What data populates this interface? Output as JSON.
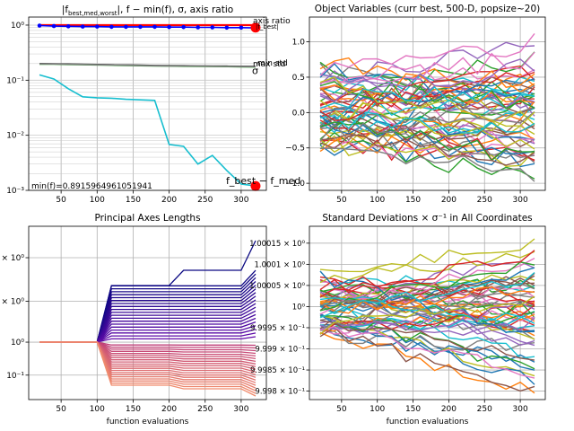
{
  "chart_data": [
    {
      "type": "line",
      "title": "|f_best,med,worst|, f − min(f), σ, axis ratio",
      "title_main": "|f",
      "title_sub": "best,med,worst",
      "title_rest": "|, f − min(f), σ, axis ratio",
      "yscale": "log",
      "xlim": [
        5,
        335
      ],
      "ylim": [
        0.001,
        1.4
      ],
      "xticks": [
        50,
        100,
        150,
        200,
        250,
        300
      ],
      "yticks": [
        {
          "v": 1,
          "label": "10⁰"
        },
        {
          "v": 0.1,
          "label": "10⁻¹"
        },
        {
          "v": 0.01,
          "label": "10⁻²"
        },
        {
          "v": 0.001,
          "label": "10⁻³"
        }
      ],
      "annotation": "min(f)=0.8915964961051941",
      "labels": {
        "axis_ratio": "axis ratio",
        "f_best": "|f_best|",
        "max_std": "max std",
        "min_std": "min std",
        "sigma": "σ",
        "f_best_minus": "f_best − f_med"
      },
      "x": [
        20,
        40,
        60,
        80,
        100,
        120,
        140,
        160,
        180,
        200,
        220,
        240,
        260,
        280,
        300,
        320
      ],
      "series": [
        {
          "name": "axis ratio",
          "color": "#ff0000",
          "values": [
            1.0,
            1.0,
            1.0,
            1.0,
            1.0,
            1.0,
            1.0,
            1.0,
            1.0,
            1.0,
            1.0,
            1.0,
            1.0,
            1.0,
            1.0,
            1.0
          ]
        },
        {
          "name": "|f_best|",
          "color": "#0000ff",
          "marker": "dot",
          "values": [
            0.98,
            0.96,
            0.95,
            0.94,
            0.94,
            0.93,
            0.93,
            0.93,
            0.93,
            0.92,
            0.92,
            0.91,
            0.91,
            0.9,
            0.9,
            0.89
          ]
        },
        {
          "name": "max std",
          "color": "#222222",
          "values": [
            0.2,
            0.199,
            0.197,
            0.195,
            0.193,
            0.191,
            0.189,
            0.187,
            0.185,
            0.184,
            0.183,
            0.182,
            0.181,
            0.18,
            0.179,
            0.178
          ]
        },
        {
          "name": "min std",
          "color": "#2ca02c",
          "values": [
            0.196,
            0.195,
            0.193,
            0.191,
            0.189,
            0.187,
            0.185,
            0.183,
            0.181,
            0.18,
            0.179,
            0.178,
            0.177,
            0.176,
            0.175,
            0.174
          ]
        },
        {
          "name": "σ",
          "color": "#808080",
          "values": [
            0.198,
            0.197,
            0.195,
            0.193,
            0.191,
            0.189,
            0.187,
            0.185,
            0.183,
            0.182,
            0.181,
            0.18,
            0.179,
            0.178,
            0.177,
            0.176
          ]
        },
        {
          "name": "f_best − f_med",
          "color": "#17becf",
          "values": [
            0.125,
            0.105,
            0.07,
            0.05,
            0.048,
            0.047,
            0.045,
            0.044,
            0.043,
            0.0068,
            0.0063,
            0.003,
            0.0043,
            0.0023,
            0.0013,
            0.0012
          ]
        }
      ],
      "endpoints": [
        {
          "x": 320,
          "y": 0.9,
          "color": "#ff0000"
        },
        {
          "x": 320,
          "y": 0.0012,
          "color": "#ff0000"
        }
      ]
    },
    {
      "type": "line",
      "title": "Object Variables (curr best, 500-D, popsize~20)",
      "xlim": [
        5,
        335
      ],
      "ylim": [
        -1.1,
        1.35
      ],
      "xticks": [
        50,
        100,
        150,
        200,
        250,
        300
      ],
      "yticks": [
        -1.0,
        -0.5,
        0.0,
        0.5,
        1.0
      ],
      "ytick_labels": [
        "−1.0",
        "−0.5",
        "0.0",
        "0.5",
        "1.0"
      ],
      "n_series": 60,
      "x": [
        20,
        40,
        60,
        80,
        100,
        120,
        140,
        160,
        180,
        200,
        220,
        240,
        260,
        280,
        300,
        320
      ],
      "start_range": [
        -0.5,
        0.7
      ],
      "end_range": [
        -1.0,
        1.25
      ]
    },
    {
      "type": "line",
      "title": "Principal Axes Lengths",
      "yscale": "log",
      "xlim": [
        5,
        335
      ],
      "xticks": [
        50,
        100,
        150,
        200,
        250,
        300
      ],
      "yticks": [
        {
          "label": "× 10⁰",
          "pos": 0.0
        },
        {
          "label": "× 10⁰",
          "pos": 0.33
        },
        {
          "label": "10⁰",
          "pos": 0.64
        },
        {
          "label": "10⁻¹",
          "pos": 0.89
        }
      ],
      "xlabel": "function evaluations",
      "n_series": 40,
      "x": [
        20,
        100,
        120,
        200,
        220,
        300,
        320
      ],
      "top_max": 1.9,
      "bottom_min": 0.75
    },
    {
      "type": "line",
      "title": "Standard Deviations × σ⁻¹ in All Coordinates",
      "xlim": [
        5,
        335
      ],
      "ylim": [
        0.99978,
        1.00019
      ],
      "xticks": [
        50,
        100,
        150,
        200,
        250,
        300
      ],
      "yticks": [
        1.00015,
        1.0001,
        1.00005,
        1.0,
        0.99995,
        0.9999,
        0.99985,
        0.9998
      ],
      "ytick_labels": [
        "1.00015 × 10⁰",
        "1.0001 × 10⁰",
        "1.00005 × 10⁰",
        "10⁰",
        "9.9995 × 10⁻¹",
        "9.999 × 10⁻¹",
        "9.9985 × 10⁻¹",
        "9.998 × 10⁻¹"
      ],
      "xlabel": "function evaluations",
      "n_series": 60,
      "x": [
        20,
        40,
        60,
        80,
        100,
        120,
        140,
        160,
        180,
        200,
        220,
        240,
        260,
        280,
        300,
        320
      ]
    }
  ]
}
